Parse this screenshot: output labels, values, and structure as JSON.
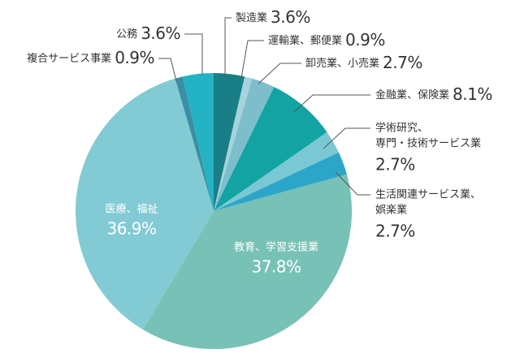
{
  "chart_data": {
    "type": "pie",
    "categories": [
      [
        "製造業"
      ],
      [
        "運輸業、郵便業"
      ],
      [
        "卸売業、小売業"
      ],
      [
        "金融業、保険業"
      ],
      [
        "学術研究、",
        "専門・技術サービス業"
      ],
      [
        "生活関連サービス業、",
        "娯楽業"
      ],
      [
        "教育、学習支援業"
      ],
      [
        "医療、福祉"
      ],
      [
        "複合サービス事業"
      ],
      [
        "公務"
      ]
    ],
    "values": [
      3.6,
      0.9,
      2.7,
      8.1,
      2.7,
      2.7,
      37.8,
      36.9,
      0.9,
      3.6
    ],
    "value_labels": [
      "3.6%",
      "0.9%",
      "2.7%",
      "8.1%",
      "2.7%",
      "2.7%",
      "37.8%",
      "36.9%",
      "0.9%",
      "3.6%"
    ],
    "colors": [
      "#1a7e86",
      "#a6d3dc",
      "#7dbecb",
      "#12a3a2",
      "#7bc8d5",
      "#2ca6c8",
      "#78c1b6",
      "#82cbd4",
      "#3b8fa2",
      "#23b3c5"
    ]
  }
}
